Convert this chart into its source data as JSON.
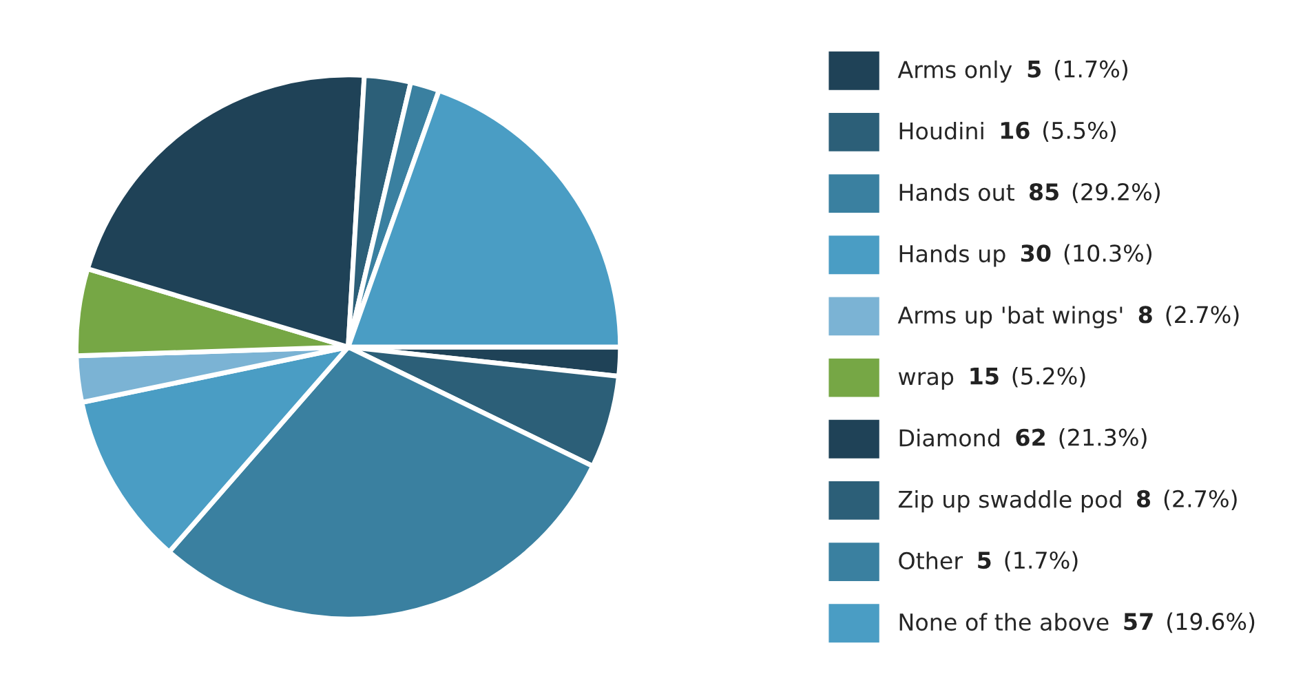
{
  "chart_data": {
    "type": "pie",
    "categories": [
      "Arms only",
      "Houdini",
      "Hands out",
      "Hands up",
      "Arms up 'bat wings'",
      "wrap",
      "Diamond",
      "Zip up swaddle pod",
      "Other",
      "None of the above"
    ],
    "values": [
      5,
      16,
      85,
      30,
      8,
      15,
      62,
      8,
      5,
      57
    ],
    "value_labels": [
      "5 (1.7%)",
      "16 (5.5%)",
      "85 (29.2%)",
      "30 (10.3%)",
      "8 (2.7%)",
      "15 (5.2%)",
      "62 (21.3%)",
      "8 (2.7%)",
      "5 (1.7%)",
      "57 (19.6%)"
    ],
    "colors": [
      "#1f4257",
      "#2c5f78",
      "#3a80a0",
      "#4a9dc4",
      "#7bb3d4",
      "#76a745",
      "#1f4257",
      "#2c5f78",
      "#3a80a0",
      "#4a9dc4"
    ],
    "legend": "right"
  }
}
